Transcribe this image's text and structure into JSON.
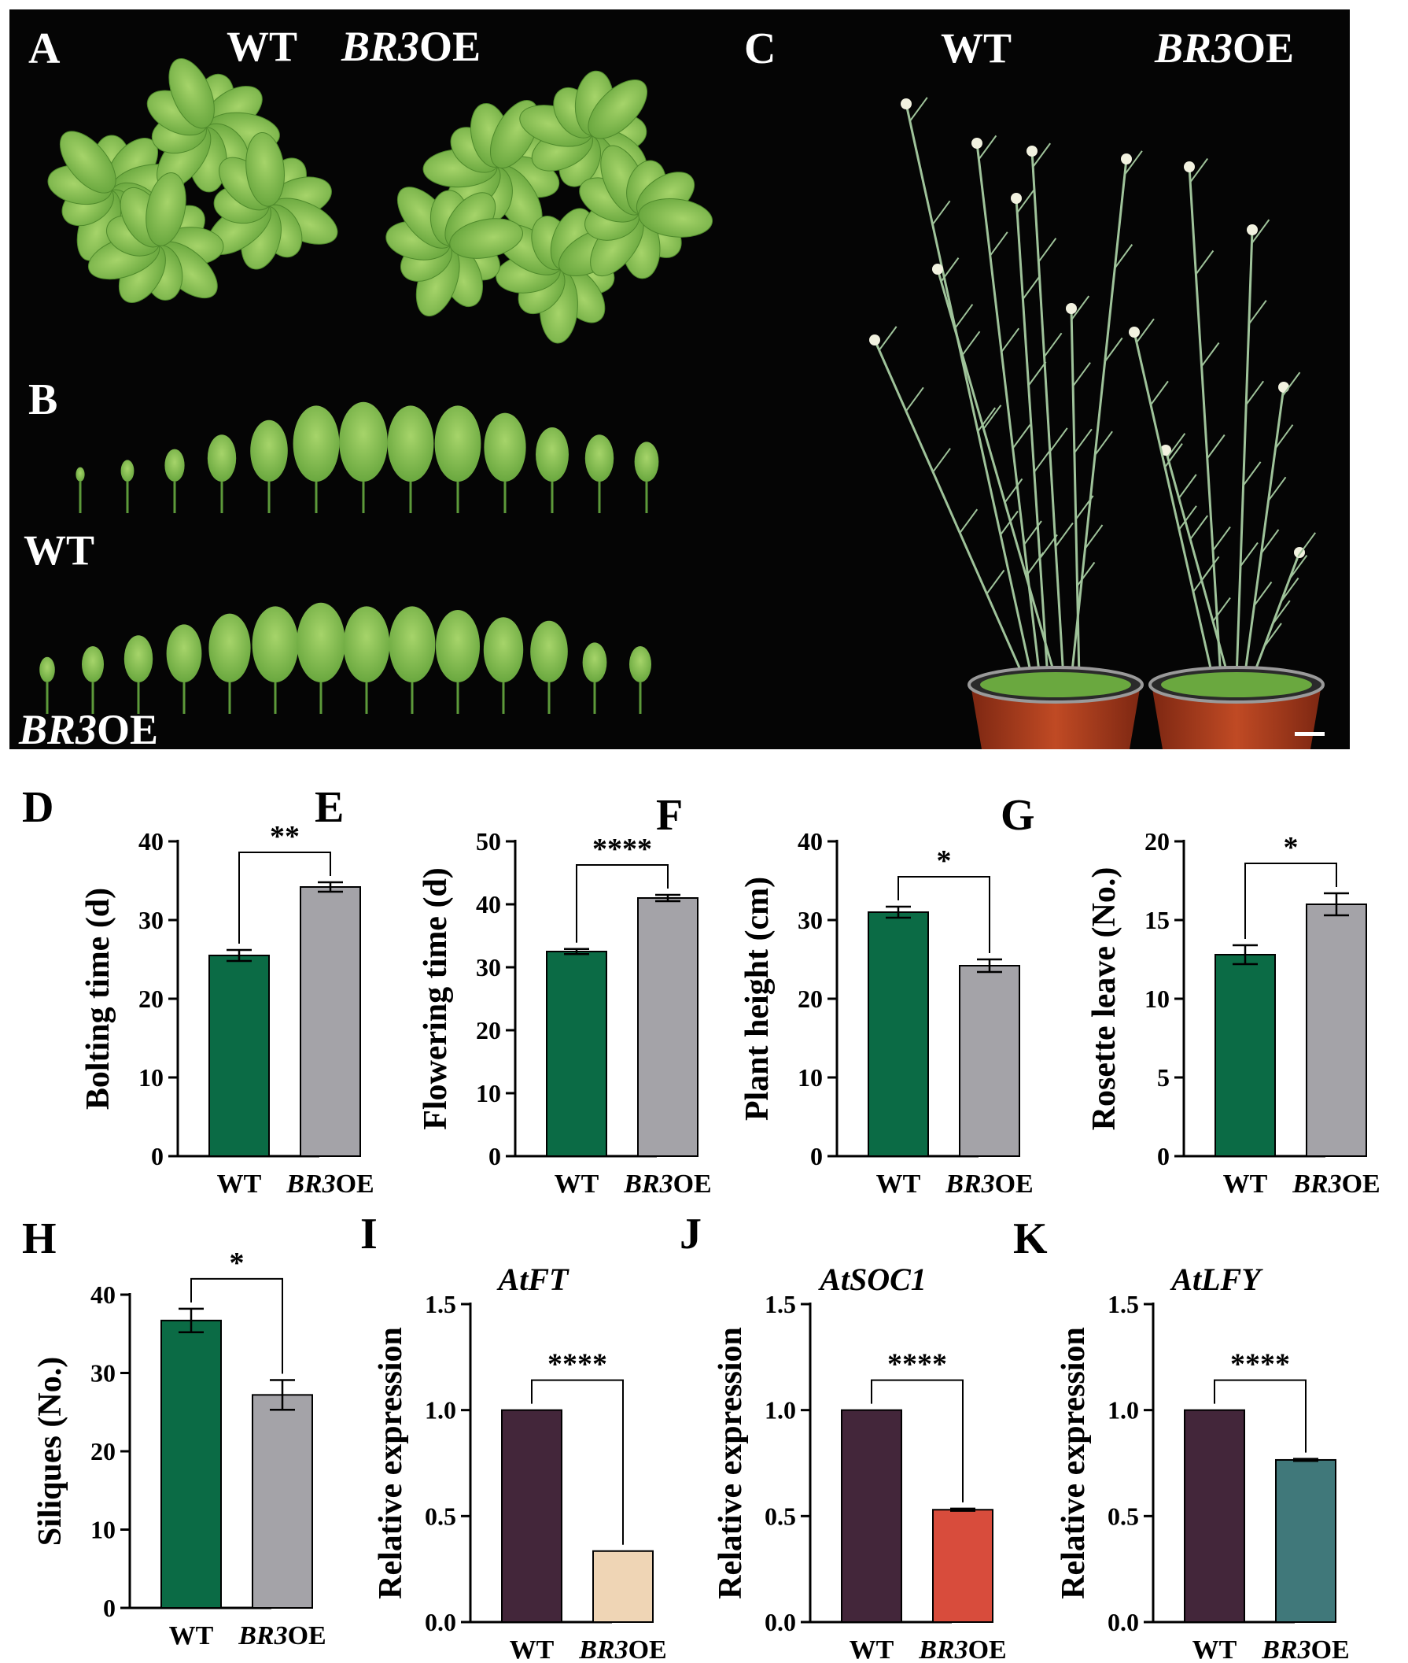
{
  "figure": {
    "panel_letters": [
      "A",
      "B",
      "C",
      "D",
      "E",
      "F",
      "G",
      "H",
      "I",
      "J",
      "K"
    ],
    "photo_labels": {
      "A_wt": "WT",
      "A_oe": "BR3OE",
      "B_wt": "WT",
      "B_oe": "BR3OE",
      "C_wt": "WT",
      "C_oe": "BR3OE"
    },
    "colors": {
      "photo_bg": "#050505",
      "leaf": "#8fc85a",
      "leaf_dark": "#5d9a3a",
      "pot": "#a83a1c",
      "stem": "#9fc39a"
    }
  },
  "chart_data": [
    {
      "panel": "D",
      "type": "bar",
      "categories": [
        "WT",
        "BR3OE"
      ],
      "values": [
        25.5,
        34.2
      ],
      "errors": [
        0.7,
        0.6
      ],
      "ylabel": "Bolting time (d)",
      "ylim": [
        0,
        40
      ],
      "yticks": [
        0,
        10,
        20,
        30,
        40
      ],
      "significance": "**",
      "colors": [
        "#0b6b45",
        "#a4a3a8"
      ],
      "title": ""
    },
    {
      "panel": "E",
      "type": "bar",
      "categories": [
        "WT",
        "BR3OE"
      ],
      "values": [
        32.5,
        41.0
      ],
      "errors": [
        0.4,
        0.5
      ],
      "ylabel": "Flowering time (d)",
      "ylim": [
        0,
        50
      ],
      "yticks": [
        0,
        10,
        20,
        30,
        40,
        50
      ],
      "significance": "****",
      "colors": [
        "#0b6b45",
        "#a4a3a8"
      ],
      "title": ""
    },
    {
      "panel": "F",
      "type": "bar",
      "categories": [
        "WT",
        "BR3OE"
      ],
      "values": [
        31.0,
        24.2
      ],
      "errors": [
        0.7,
        0.8
      ],
      "ylabel": "Plant height (cm)",
      "ylim": [
        0,
        40
      ],
      "yticks": [
        0,
        10,
        20,
        30,
        40
      ],
      "significance": "*",
      "colors": [
        "#0b6b45",
        "#a4a3a8"
      ],
      "title": ""
    },
    {
      "panel": "G",
      "type": "bar",
      "categories": [
        "WT",
        "BR3OE"
      ],
      "values": [
        12.8,
        16.0
      ],
      "errors": [
        0.6,
        0.7
      ],
      "ylabel": "Rosette leave (No.)",
      "ylim": [
        0,
        20
      ],
      "yticks": [
        0,
        5,
        10,
        15,
        20
      ],
      "significance": "*",
      "colors": [
        "#0b6b45",
        "#a4a3a8"
      ],
      "title": ""
    },
    {
      "panel": "H",
      "type": "bar",
      "categories": [
        "WT",
        "BR3OE"
      ],
      "values": [
        36.7,
        27.2
      ],
      "errors": [
        1.5,
        1.9
      ],
      "ylabel": "Siliques (No.)",
      "ylim": [
        0,
        40
      ],
      "yticks": [
        0,
        10,
        20,
        30,
        40
      ],
      "significance": "*",
      "colors": [
        "#0b6b45",
        "#a4a3a8"
      ],
      "title": ""
    },
    {
      "panel": "I",
      "type": "bar",
      "categories": [
        "WT",
        "BR3OE"
      ],
      "values": [
        1.0,
        0.335
      ],
      "errors": [
        0,
        0
      ],
      "ylabel": "Relative expression",
      "ylim": [
        0,
        1.5
      ],
      "yticks": [
        0.0,
        0.5,
        1.0,
        1.5
      ],
      "significance": "****",
      "colors": [
        "#43263a",
        "#efd5b5"
      ],
      "title": "AtFT"
    },
    {
      "panel": "J",
      "type": "bar",
      "categories": [
        "WT",
        "BR3OE"
      ],
      "values": [
        1.0,
        0.53
      ],
      "errors": [
        0,
        0.005
      ],
      "ylabel": "Relative expression",
      "ylim": [
        0,
        1.5
      ],
      "yticks": [
        0.0,
        0.5,
        1.0,
        1.5
      ],
      "significance": "****",
      "colors": [
        "#43263a",
        "#d84c3c"
      ],
      "title": "AtSOC1"
    },
    {
      "panel": "K",
      "type": "bar",
      "categories": [
        "WT",
        "BR3OE"
      ],
      "values": [
        1.0,
        0.765
      ],
      "errors": [
        0,
        0.005
      ],
      "ylabel": "Relative expression",
      "ylim": [
        0,
        1.5
      ],
      "yticks": [
        0.0,
        0.5,
        1.0,
        1.5
      ],
      "significance": "****",
      "colors": [
        "#43263a",
        "#40787a"
      ],
      "title": "AtLFY"
    }
  ]
}
